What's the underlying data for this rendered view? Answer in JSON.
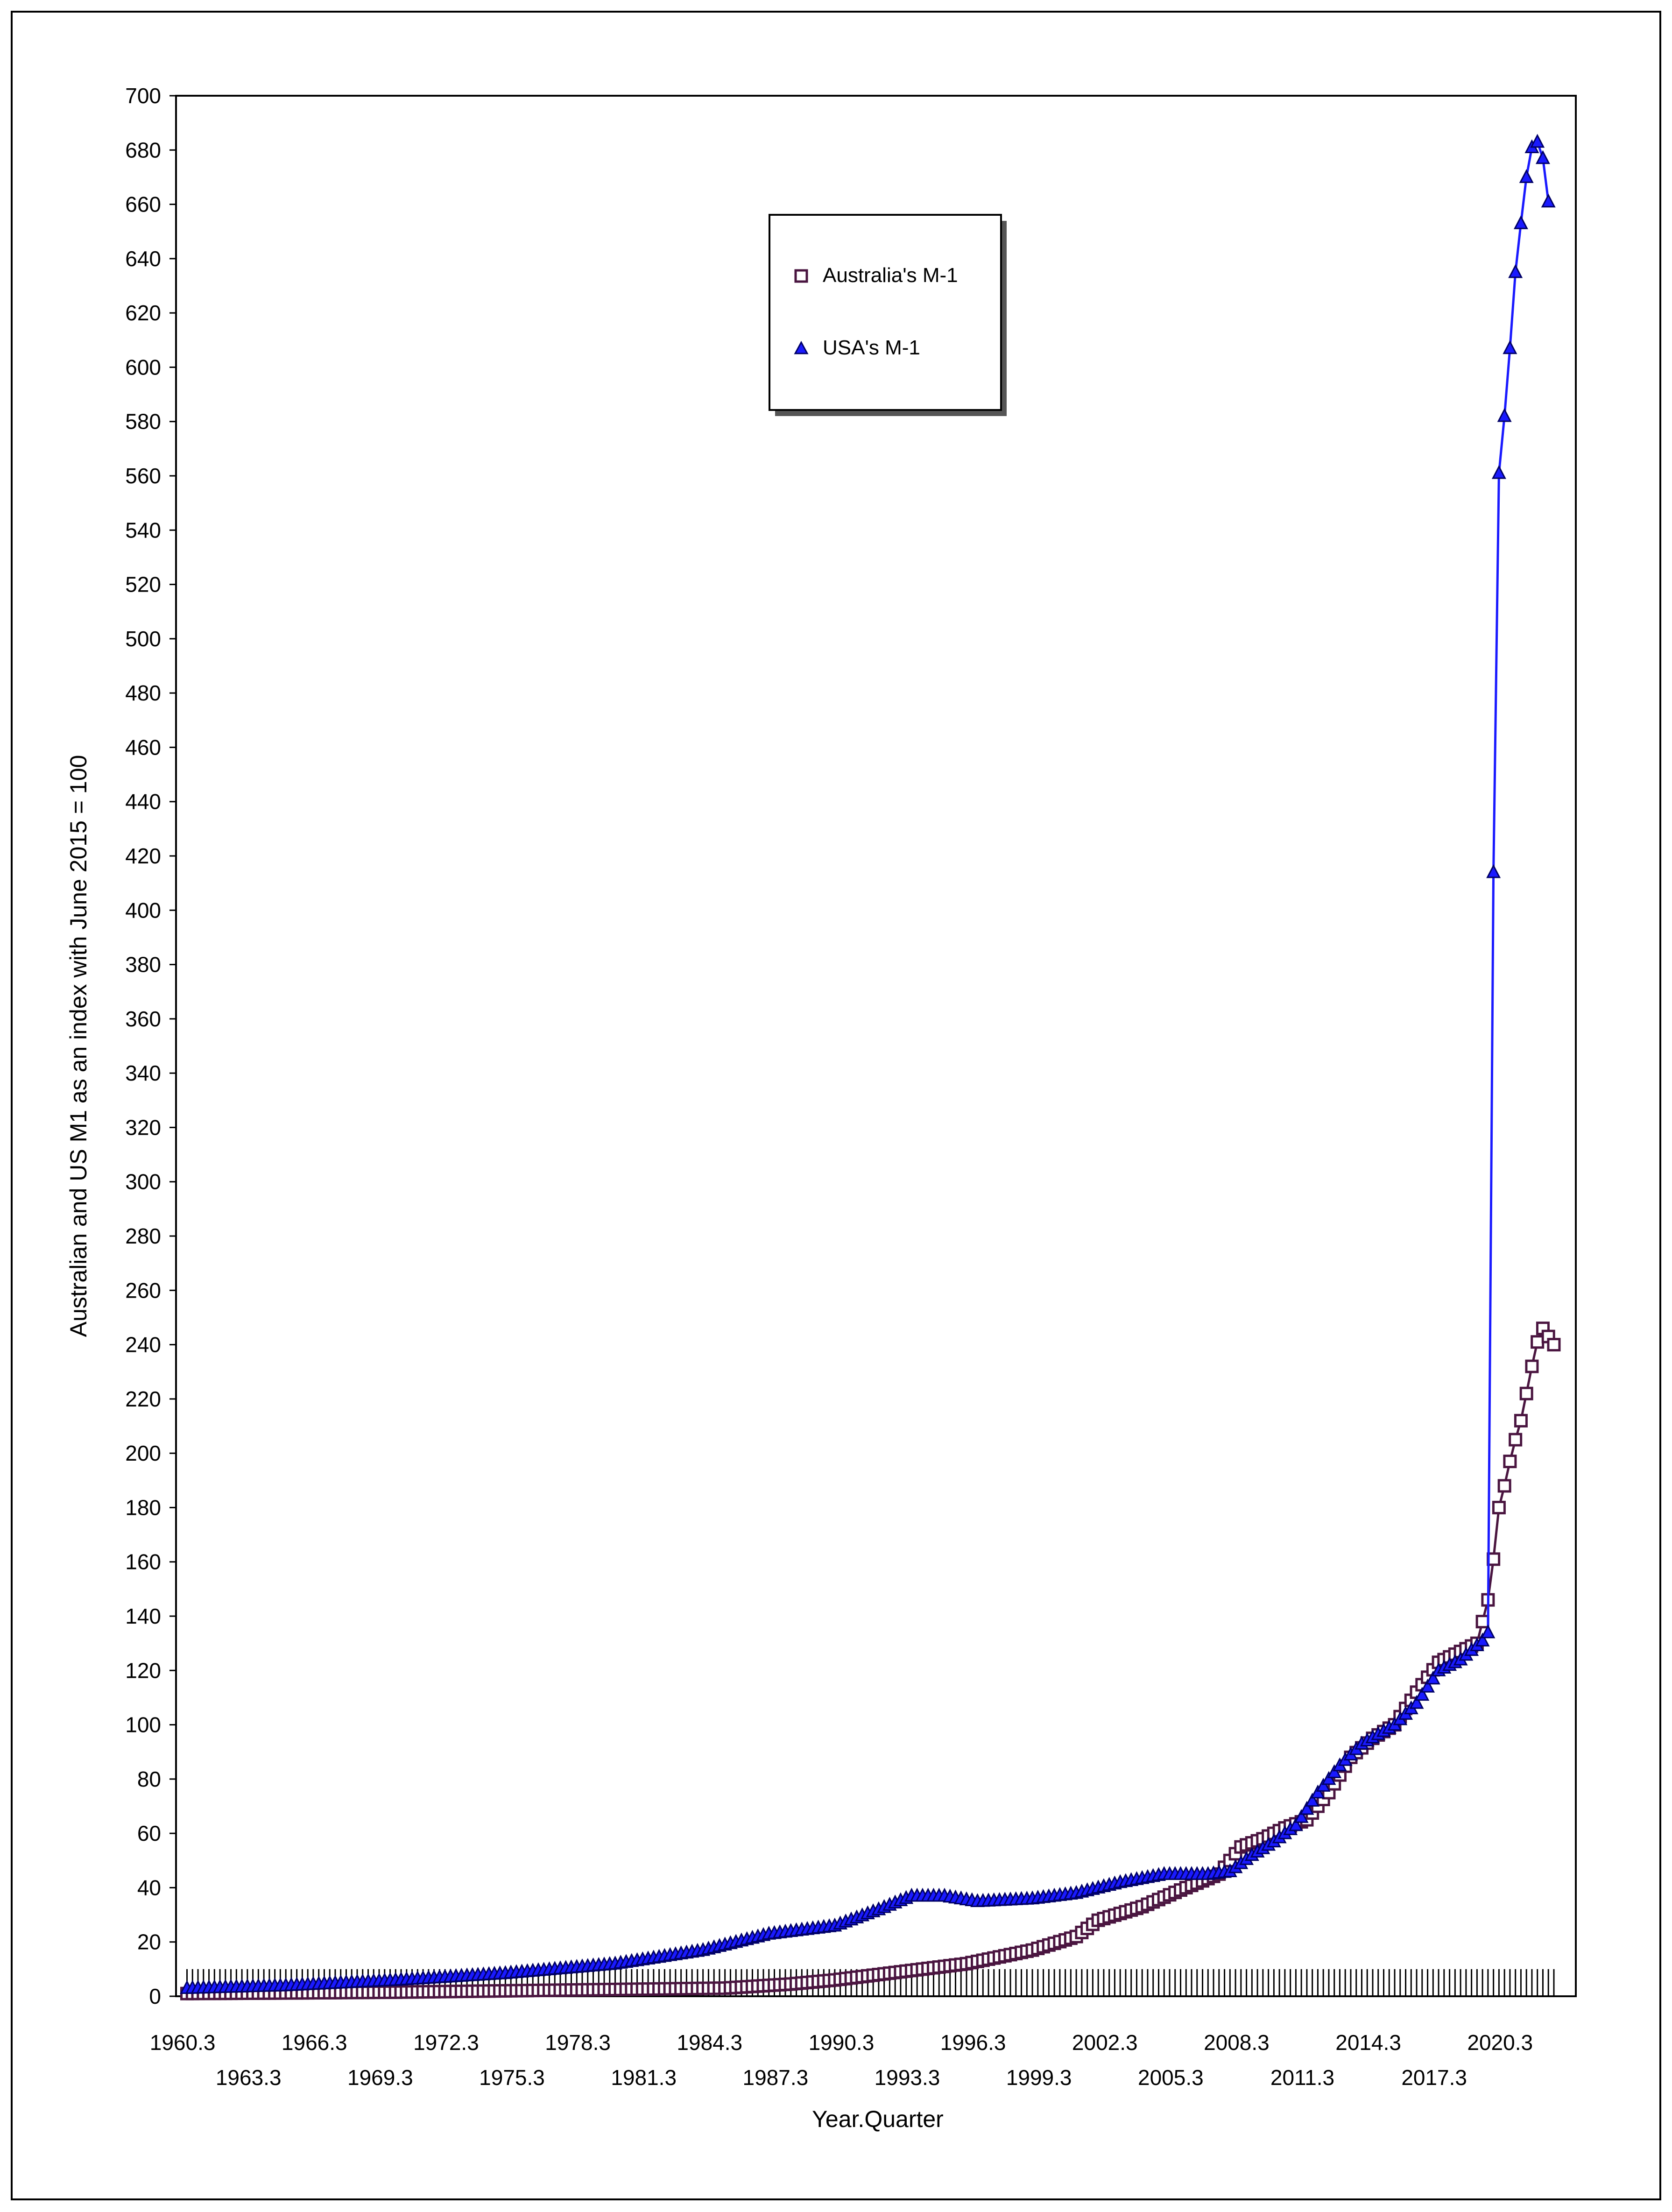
{
  "chart_data": {
    "type": "line",
    "title": "",
    "xlabel": "Year.Quarter",
    "ylabel": "Australian and US M1 as an index with June 2015 = 100",
    "x_range": [
      1960.0,
      2023.75
    ],
    "ylim": [
      0,
      700
    ],
    "y_ticks": [
      0,
      20,
      40,
      60,
      80,
      100,
      120,
      140,
      160,
      180,
      200,
      220,
      240,
      260,
      280,
      300,
      320,
      340,
      360,
      380,
      400,
      420,
      440,
      460,
      480,
      500,
      520,
      540,
      560,
      580,
      600,
      620,
      640,
      660,
      680,
      700
    ],
    "x_tick_labels_upper": [
      "1960.3",
      "1966.3",
      "1972.3",
      "1978.3",
      "1984.3",
      "1990.3",
      "1996.3",
      "2002.3",
      "2008.3",
      "2014.3",
      "2020.3"
    ],
    "x_tick_labels_lower": [
      "1963.3",
      "1969.3",
      "1975.3",
      "1981.3",
      "1987.3",
      "1993.3",
      "1999.3",
      "2005.3",
      "2011.3",
      "2017.3"
    ],
    "legend": {
      "placement": "top-center",
      "entries": [
        "Australia's M-1",
        "USA's M-1"
      ]
    },
    "colors": {
      "australia_line": "#4a1540",
      "usa_line": "#1a1aff",
      "usa_marker": "#000066"
    },
    "series": [
      {
        "name": "Australia's M-1",
        "marker": "open-square",
        "knots": [
          [
            1960.5,
            1
          ],
          [
            1965,
            1.2
          ],
          [
            1970,
            1.5
          ],
          [
            1975,
            2
          ],
          [
            1980,
            2.5
          ],
          [
            1985,
            3
          ],
          [
            1988,
            4.5
          ],
          [
            1990,
            6
          ],
          [
            1993,
            9
          ],
          [
            1996,
            12
          ],
          [
            1999,
            17
          ],
          [
            2001,
            22
          ],
          [
            2002,
            28
          ],
          [
            2004,
            33
          ],
          [
            2006,
            40
          ],
          [
            2007.5,
            45
          ],
          [
            2008.5,
            55
          ],
          [
            2009.5,
            58
          ],
          [
            2010.5,
            62
          ],
          [
            2011.5,
            65
          ],
          [
            2012.5,
            75
          ],
          [
            2013.5,
            88
          ],
          [
            2014.5,
            95
          ],
          [
            2015.5,
            100
          ],
          [
            2016.5,
            112
          ],
          [
            2017.5,
            123
          ],
          [
            2018.5,
            127
          ],
          [
            2019.25,
            130
          ],
          [
            2019.75,
            146
          ],
          [
            2020.0,
            161
          ],
          [
            2020.25,
            180
          ],
          [
            2020.5,
            188
          ],
          [
            2020.75,
            197
          ],
          [
            2021.0,
            205
          ],
          [
            2021.25,
            212
          ],
          [
            2021.5,
            222
          ],
          [
            2021.75,
            232
          ],
          [
            2022.0,
            241
          ],
          [
            2022.25,
            246
          ],
          [
            2022.5,
            243
          ],
          [
            2022.75,
            240
          ]
        ]
      },
      {
        "name": "USA's M-1",
        "marker": "filled-triangle",
        "knots": [
          [
            1960.5,
            3
          ],
          [
            1965,
            4
          ],
          [
            1970,
            6
          ],
          [
            1975,
            8.5
          ],
          [
            1980,
            12
          ],
          [
            1984,
            17
          ],
          [
            1987,
            23
          ],
          [
            1990,
            26
          ],
          [
            1992,
            32
          ],
          [
            1993.5,
            37
          ],
          [
            1995,
            37
          ],
          [
            1996.5,
            35
          ],
          [
            1999,
            36
          ],
          [
            2001,
            38
          ],
          [
            2003,
            42
          ],
          [
            2005,
            45
          ],
          [
            2007,
            45
          ],
          [
            2008,
            46
          ],
          [
            2009,
            52
          ],
          [
            2010,
            57
          ],
          [
            2011,
            63
          ],
          [
            2012,
            75
          ],
          [
            2013,
            85
          ],
          [
            2014,
            93
          ],
          [
            2015.5,
            100
          ],
          [
            2016.5,
            108
          ],
          [
            2017.5,
            120
          ],
          [
            2018.5,
            124
          ],
          [
            2019.5,
            131
          ],
          [
            2019.75,
            134
          ],
          [
            2020.0,
            414
          ],
          [
            2020.25,
            561
          ],
          [
            2020.5,
            582
          ],
          [
            2020.75,
            607
          ],
          [
            2021.0,
            635
          ],
          [
            2021.25,
            653
          ],
          [
            2021.5,
            670
          ],
          [
            2021.75,
            681
          ],
          [
            2022.0,
            683
          ],
          [
            2022.25,
            677
          ],
          [
            2022.5,
            661
          ]
        ]
      }
    ]
  }
}
